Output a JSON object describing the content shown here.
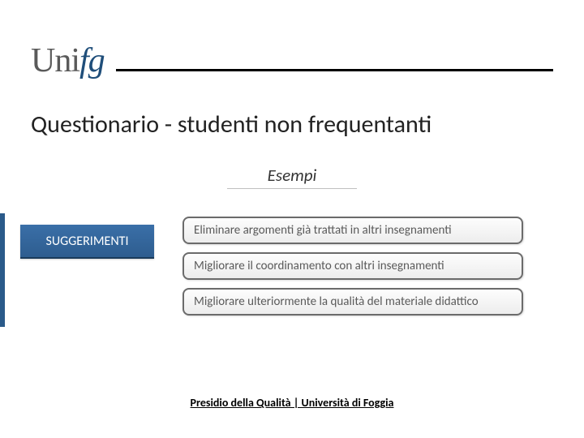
{
  "logo": {
    "part1": "Uni",
    "part2": "fg"
  },
  "title": "Questionario - studenti non frequentanti",
  "subtitle": "Esempi",
  "sidebar_label": "SUGGERIMENTI",
  "suggestions": [
    "Eliminare argomenti già trattati in altri insegnamenti",
    "Migliorare il coordinamento con altri insegnamenti",
    "Migliorare ulteriormente la qualità del materiale didattico"
  ],
  "footer": "Presidio della Qualità | Università di Foggia",
  "colors": {
    "logo_gray": "#5a5a5a",
    "logo_accent": "#1f4e7a",
    "box_bg_top": "#3a6fa8",
    "box_bg_bottom": "#2e5d8f",
    "item_border": "#6b6b6b",
    "item_text": "#5a5a5a",
    "stripe": "#2a5a8a"
  }
}
